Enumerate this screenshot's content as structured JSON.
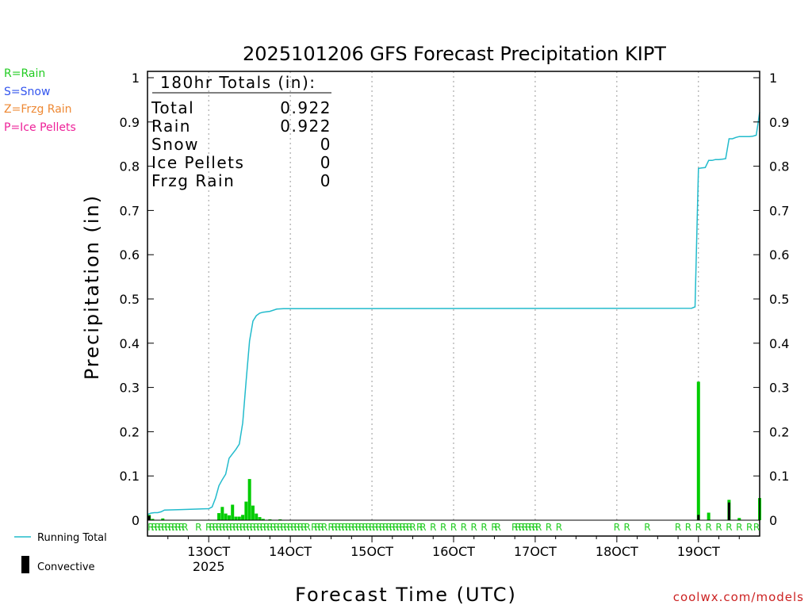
{
  "chart_data": {
    "type": "bar",
    "title": "2025101206 GFS Forecast Precipitation KIPT",
    "xlabel": "Forecast Time (UTC)",
    "ylabel": "Precipitation (in)",
    "ylim": [
      0,
      1
    ],
    "yticks": [
      "0",
      "0.1",
      "0.2",
      "0.3",
      "0.4",
      "0.5",
      "0.6",
      "0.7",
      "0.8",
      "0.9",
      "1"
    ],
    "yticks_right": [
      "0",
      "0.1",
      "0.2",
      "0.3",
      "0.4",
      "0.5",
      "0.6",
      "0.7",
      "0.8",
      "0.9",
      "1"
    ],
    "xlim_hours": [
      0,
      180
    ],
    "xticks": [
      {
        "hour": 18,
        "label": "13OCT",
        "sub": "2025"
      },
      {
        "hour": 42,
        "label": "14OCT",
        "sub": ""
      },
      {
        "hour": 66,
        "label": "15OCT",
        "sub": ""
      },
      {
        "hour": 90,
        "label": "16OCT",
        "sub": ""
      },
      {
        "hour": 114,
        "label": "17OCT",
        "sub": ""
      },
      {
        "hour": 138,
        "label": "18OCT",
        "sub": ""
      },
      {
        "hour": 162,
        "label": "19OCT",
        "sub": ""
      }
    ],
    "grid": "dotted-vertical",
    "totals_box": {
      "header": "180hr Totals (in):",
      "rows": [
        {
          "label": "Total",
          "value": "0.922"
        },
        {
          "label": "Rain",
          "value": "0.922"
        },
        {
          "label": "Snow",
          "value": "0"
        },
        {
          "label": "Ice Pellets",
          "value": "0"
        },
        {
          "label": "Frzg Rain",
          "value": "0"
        }
      ]
    },
    "type_legend": [
      {
        "text": "R=Rain",
        "color": "#22cc22"
      },
      {
        "text": "S=Snow",
        "color": "#3355ee"
      },
      {
        "text": "Z=Frzg Rain",
        "color": "#ee8833"
      },
      {
        "text": "P=Ice Pellets",
        "color": "#ee2299"
      }
    ],
    "series_legend": [
      {
        "name": "Running Total",
        "color": "#22bbcc",
        "kind": "line"
      },
      {
        "name": "Convective",
        "color": "#000000",
        "kind": "bar"
      }
    ],
    "bars": [
      {
        "hour": 0.5,
        "value": 0.012,
        "conv": 0.01
      },
      {
        "hour": 1.5,
        "value": 0.003,
        "conv": 0.0
      },
      {
        "hour": 4.5,
        "value": 0.004,
        "conv": 0.0
      },
      {
        "hour": 21,
        "value": 0.016,
        "conv": 0.0
      },
      {
        "hour": 22,
        "value": 0.03,
        "conv": 0.0
      },
      {
        "hour": 23,
        "value": 0.015,
        "conv": 0.0
      },
      {
        "hour": 24,
        "value": 0.011,
        "conv": 0.0
      },
      {
        "hour": 25,
        "value": 0.035,
        "conv": 0.0
      },
      {
        "hour": 26,
        "value": 0.008,
        "conv": 0.0
      },
      {
        "hour": 27,
        "value": 0.008,
        "conv": 0.0
      },
      {
        "hour": 28,
        "value": 0.012,
        "conv": 0.0
      },
      {
        "hour": 29,
        "value": 0.042,
        "conv": 0.0
      },
      {
        "hour": 30,
        "value": 0.093,
        "conv": 0.0
      },
      {
        "hour": 31,
        "value": 0.033,
        "conv": 0.0
      },
      {
        "hour": 32,
        "value": 0.015,
        "conv": 0.0
      },
      {
        "hour": 33,
        "value": 0.007,
        "conv": 0.0
      },
      {
        "hour": 34,
        "value": 0.003,
        "conv": 0.0
      },
      {
        "hour": 36,
        "value": 0.002,
        "conv": 0.0
      },
      {
        "hour": 39,
        "value": 0.002,
        "conv": 0.0
      },
      {
        "hour": 162,
        "value": 0.313,
        "conv": 0.012
      },
      {
        "hour": 165,
        "value": 0.017,
        "conv": 0.0
      },
      {
        "hour": 171,
        "value": 0.046,
        "conv": 0.04
      },
      {
        "hour": 174,
        "value": 0.005,
        "conv": 0.0
      },
      {
        "hour": 180,
        "value": 0.05,
        "conv": 0.0
      }
    ],
    "running_total": {
      "name": "Running Total",
      "x": [
        0,
        1,
        2,
        3,
        4,
        5,
        10,
        18,
        19,
        20,
        21,
        22,
        23,
        24,
        25,
        26,
        27,
        28,
        29,
        30,
        31,
        32,
        33,
        34,
        36,
        38,
        40,
        160,
        161,
        162,
        163,
        164,
        165,
        166,
        167,
        168,
        169,
        170,
        171,
        172,
        173,
        174,
        175,
        176,
        177,
        178,
        179,
        180
      ],
      "y": [
        0.013,
        0.016,
        0.017,
        0.017,
        0.019,
        0.023,
        0.024,
        0.026,
        0.03,
        0.05,
        0.078,
        0.092,
        0.104,
        0.14,
        0.15,
        0.16,
        0.172,
        0.22,
        0.315,
        0.405,
        0.45,
        0.462,
        0.468,
        0.47,
        0.472,
        0.477,
        0.478,
        0.479,
        0.482,
        0.795,
        0.796,
        0.797,
        0.813,
        0.813,
        0.815,
        0.815,
        0.816,
        0.817,
        0.862,
        0.862,
        0.865,
        0.867,
        0.867,
        0.867,
        0.867,
        0.868,
        0.87,
        0.922
      ]
    },
    "type_row": {
      "label_char": "R",
      "color": "#22cc22",
      "hours": [
        1,
        2,
        3,
        4,
        5,
        6,
        7,
        8,
        9,
        10,
        11,
        15,
        18,
        19,
        20,
        21,
        22,
        23,
        24,
        25,
        26,
        27,
        28,
        29,
        30,
        31,
        32,
        33,
        34,
        35,
        36,
        37,
        38,
        39,
        40,
        41,
        42,
        43,
        44,
        45,
        46,
        47,
        49,
        50,
        51,
        52,
        54,
        55,
        56,
        57,
        58,
        59,
        60,
        61,
        62,
        63,
        64,
        65,
        66,
        67,
        68,
        69,
        70,
        71,
        72,
        73,
        74,
        75,
        76,
        77,
        78,
        80,
        81,
        84,
        87,
        90,
        93,
        96,
        99,
        102,
        103,
        108,
        109,
        110,
        111,
        112,
        113,
        114,
        115,
        118,
        121,
        138,
        141,
        147,
        156,
        159,
        162,
        165,
        168,
        171,
        174,
        177,
        180
      ]
    }
  }
}
